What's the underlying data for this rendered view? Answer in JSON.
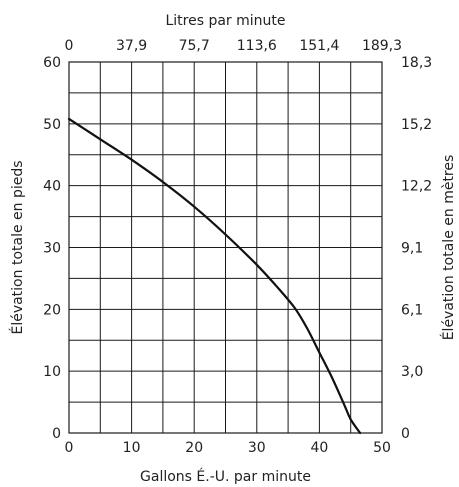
{
  "chart_data": {
    "type": "line",
    "title": "",
    "xlabel": "Gallons É.-U. par minute",
    "ylabel": "Élévation totale en pieds",
    "x2label": "Litres par minute",
    "y2label": "Élévation totale en mètres",
    "xlim": [
      0,
      50
    ],
    "ylim": [
      0,
      60
    ],
    "grid": true,
    "x_major_ticks": [
      0,
      10,
      20,
      30,
      40,
      50
    ],
    "x_grid_step": 5,
    "y_major_ticks": [
      0,
      10,
      20,
      30,
      40,
      50,
      60
    ],
    "y_grid_step": 5,
    "x_tick_labels": [
      "0",
      "10",
      "20",
      "30",
      "40",
      "50"
    ],
    "y_tick_labels": [
      "0",
      "10",
      "20",
      "30",
      "40",
      "50",
      "60"
    ],
    "x2_tick_labels": [
      "0",
      "37,9",
      "75,7",
      "113,6",
      "151,4",
      "189,3"
    ],
    "y2_tick_labels": [
      "0",
      "3,0",
      "6,1",
      "9,1",
      "12,2",
      "15,2",
      "18,3"
    ],
    "series": [
      {
        "x": [
          0,
          5,
          10,
          15,
          20,
          25,
          30,
          33,
          36,
          38,
          40,
          42,
          44,
          45,
          46.5
        ],
        "y": [
          50.8,
          47.5,
          44.2,
          40.6,
          36.6,
          32.1,
          27.2,
          23.9,
          20.3,
          17.0,
          13.0,
          9.0,
          4.5,
          2.2,
          0
        ]
      }
    ],
    "colors": {
      "line": "#111111",
      "grid": "#1a1a1a",
      "text": "#222222",
      "background": "#ffffff"
    }
  }
}
